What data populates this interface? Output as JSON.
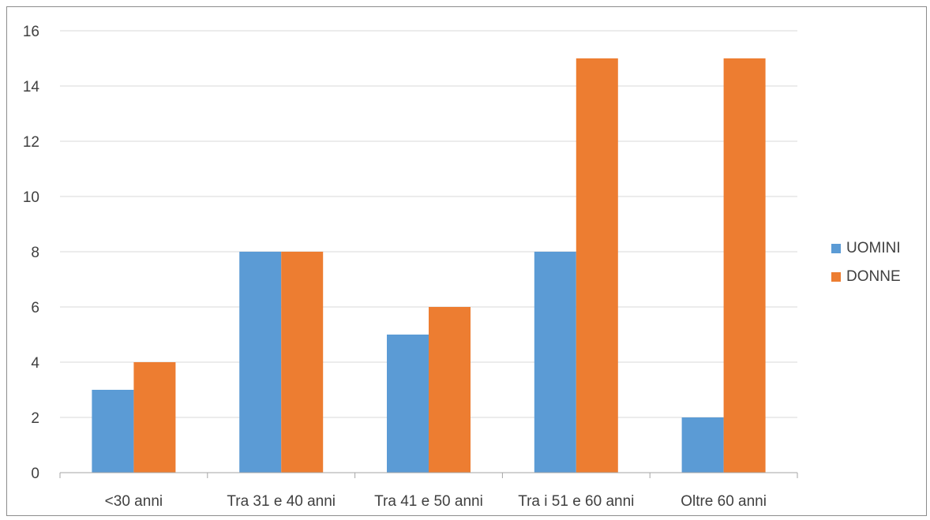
{
  "chart_data": {
    "type": "bar",
    "title": "",
    "xlabel": "",
    "ylabel": "",
    "categories": [
      "<30 anni",
      "Tra 31 e 40 anni",
      "Tra 41 e 50 anni",
      "Tra i 51 e 60 anni",
      "Oltre 60 anni"
    ],
    "series": [
      {
        "name": "UOMINI",
        "values": [
          3,
          8,
          5,
          8,
          2
        ],
        "color": "#5b9bd5"
      },
      {
        "name": "DONNE",
        "values": [
          4,
          8,
          6,
          15,
          15
        ],
        "color": "#ed7d31"
      }
    ],
    "ylim": [
      0,
      16
    ],
    "yticks": [
      0,
      2,
      4,
      6,
      8,
      10,
      12,
      14,
      16
    ],
    "grid": true,
    "legend_position": "right",
    "gridline_color": "#d9d9d9",
    "axis_color": "#a6a6a6"
  }
}
